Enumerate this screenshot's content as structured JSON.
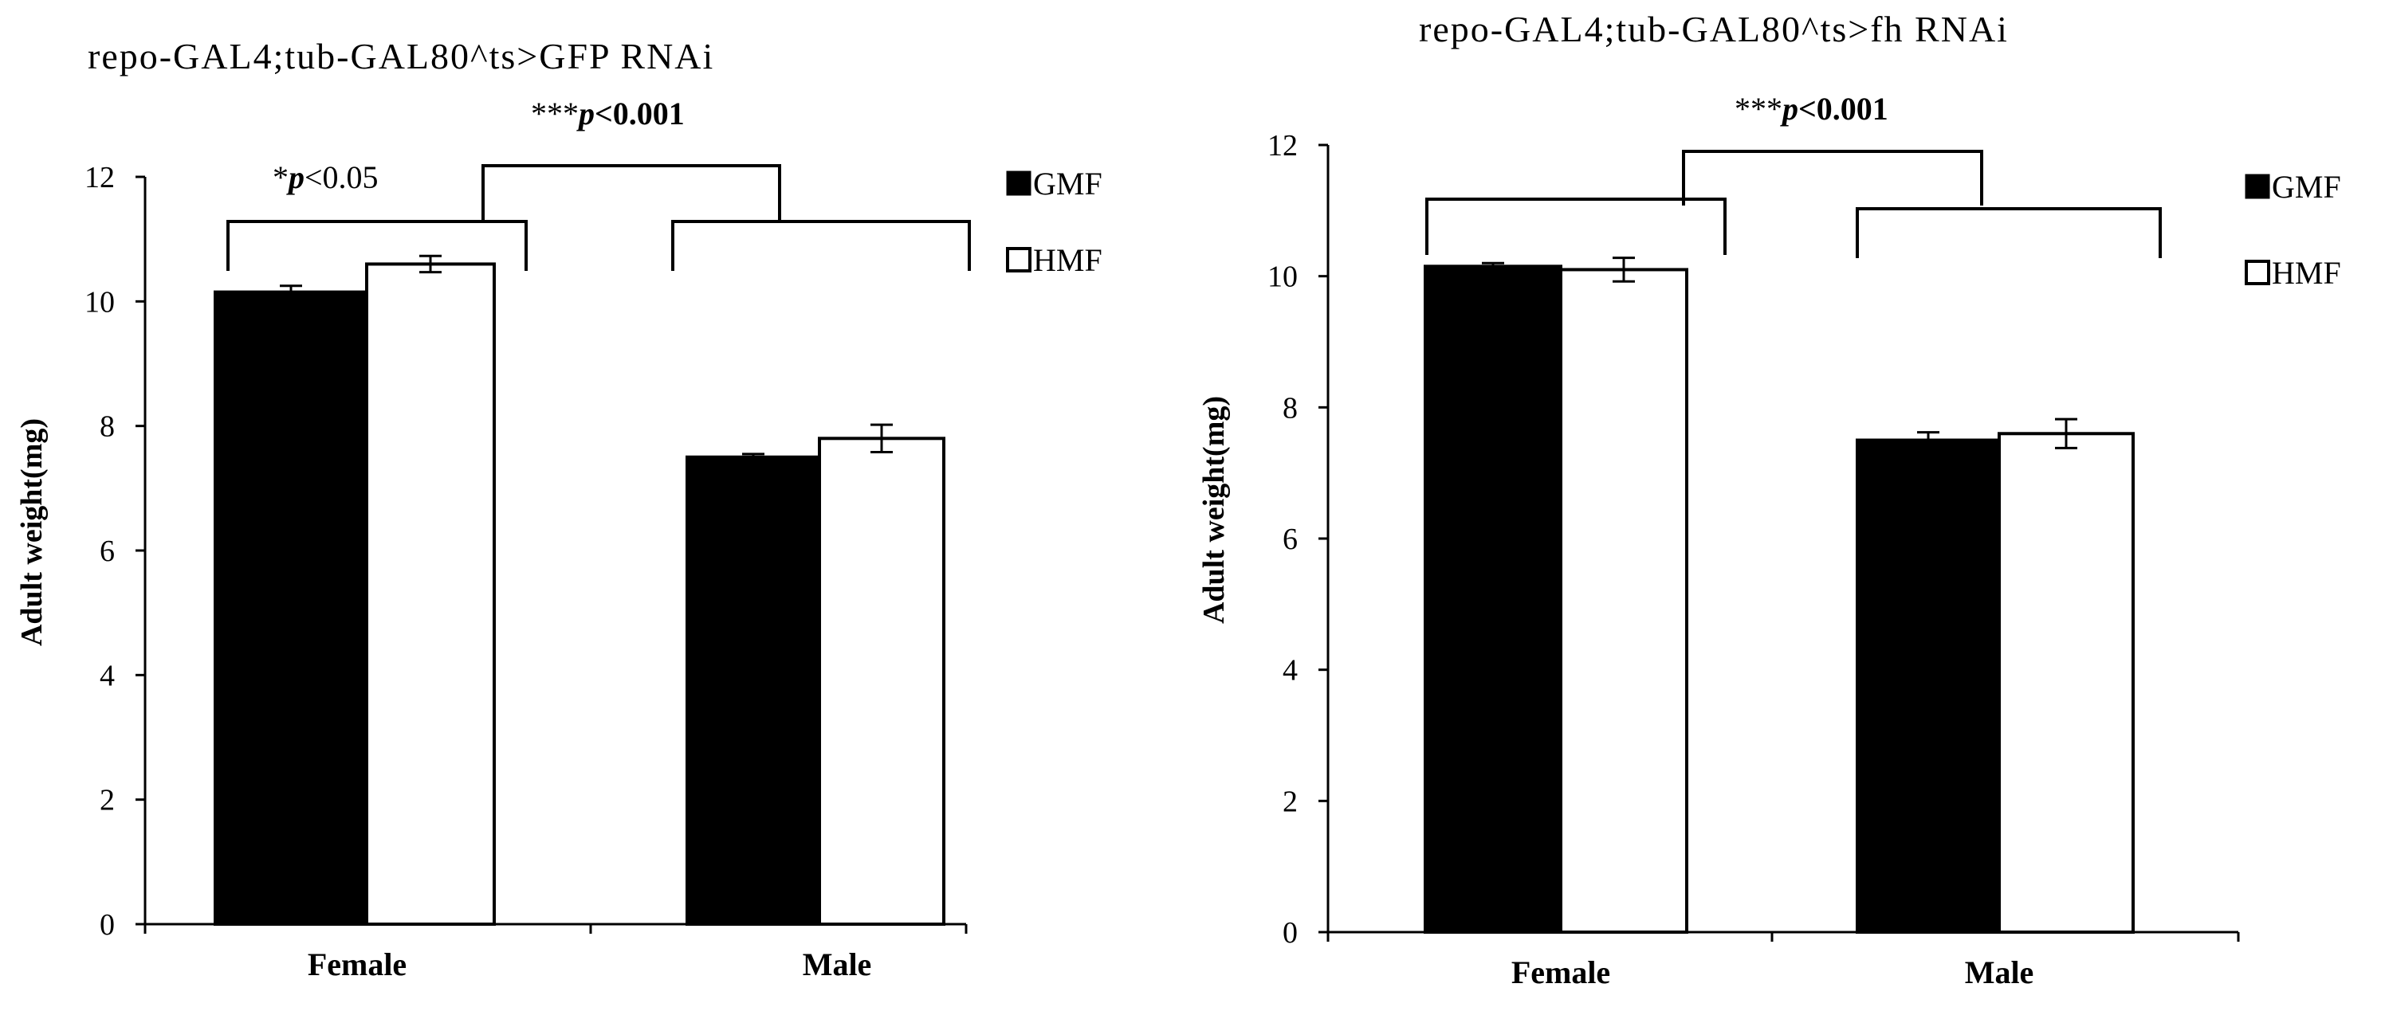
{
  "chart_data": [
    {
      "type": "bar",
      "title": "repo-GAL4;tub-GAL80^ts>GFP RNAi",
      "ylabel": "Adult weight(mg)",
      "xlabel": "",
      "categories": [
        "Female",
        "Male"
      ],
      "ylim": [
        0,
        12
      ],
      "yticks": [
        "0",
        "2",
        "4",
        "6",
        "8",
        "10",
        "12"
      ],
      "grid": false,
      "legend_position": "top-right",
      "series": [
        {
          "name": "GMF",
          "color": "#000000",
          "values": [
            10.15,
            7.5
          ],
          "errors": [
            0.1,
            0.05
          ]
        },
        {
          "name": "HMF",
          "color": "#ffffff",
          "values": [
            10.6,
            7.8
          ],
          "errors": [
            0.13,
            0.22
          ]
        }
      ],
      "annotations": {
        "within_female": {
          "star": "*",
          "p": "p",
          "rest": "<0.05"
        },
        "between_sex": {
          "star": "***",
          "p": "p",
          "rest": "<0.001"
        }
      }
    },
    {
      "type": "bar",
      "title": "repo-GAL4;tub-GAL80^ts>fh RNAi",
      "ylabel": "Adult weight(mg)",
      "xlabel": "",
      "categories": [
        "Female",
        "Male"
      ],
      "ylim": [
        0,
        12
      ],
      "yticks": [
        "0",
        "2",
        "4",
        "6",
        "8",
        "10",
        "12"
      ],
      "grid": false,
      "legend_position": "top-right",
      "series": [
        {
          "name": "GMF",
          "color": "#000000",
          "values": [
            10.15,
            7.5
          ],
          "errors": [
            0.05,
            0.12
          ]
        },
        {
          "name": "HMF",
          "color": "#ffffff",
          "values": [
            10.1,
            7.6
          ],
          "errors": [
            0.18,
            0.22
          ]
        }
      ],
      "annotations": {
        "between_sex": {
          "star": "***",
          "p": "p",
          "rest": "<0.001"
        }
      }
    }
  ]
}
